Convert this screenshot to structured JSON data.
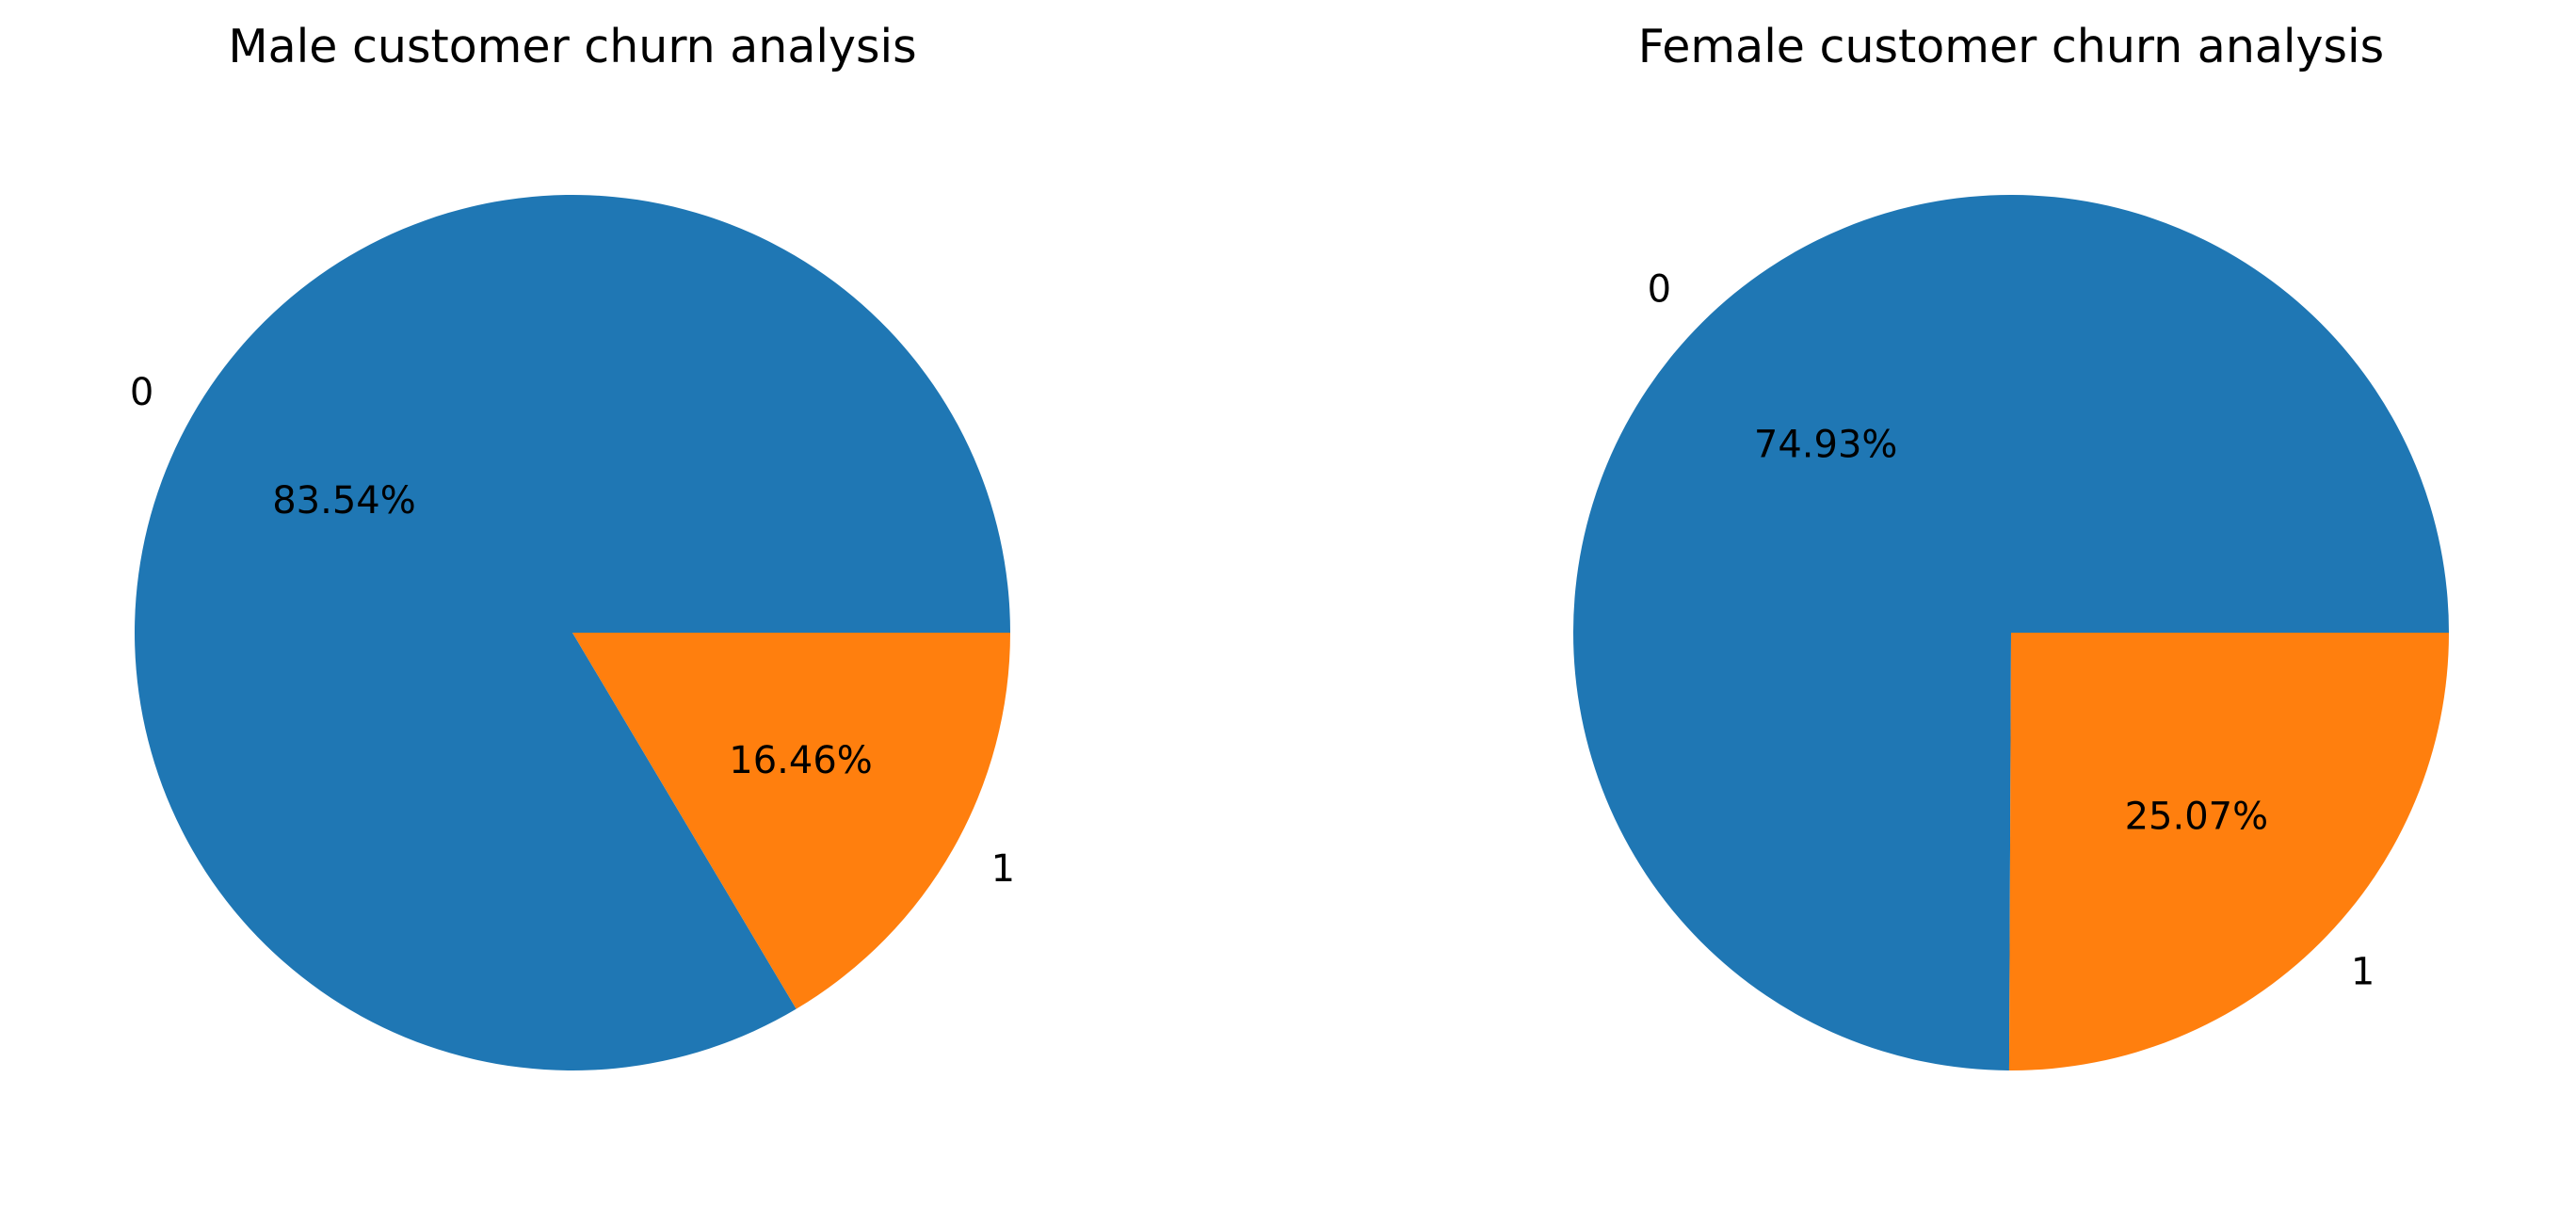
{
  "chart_data": [
    {
      "type": "pie",
      "title": "Male customer churn analysis",
      "categories": [
        "0",
        "1"
      ],
      "values": [
        83.54,
        16.46
      ],
      "autopct_labels": [
        "83.54%",
        "16.46%"
      ],
      "colors": [
        "#1f77b4",
        "#ff7f0e"
      ],
      "start_angle_deg": 0,
      "direction": "counterclockwise"
    },
    {
      "type": "pie",
      "title": "Female customer churn analysis",
      "categories": [
        "0",
        "1"
      ],
      "values": [
        74.93,
        25.07
      ],
      "autopct_labels": [
        "74.93%",
        "25.07%"
      ],
      "colors": [
        "#1f77b4",
        "#ff7f0e"
      ],
      "start_angle_deg": 0,
      "direction": "counterclockwise"
    }
  ]
}
